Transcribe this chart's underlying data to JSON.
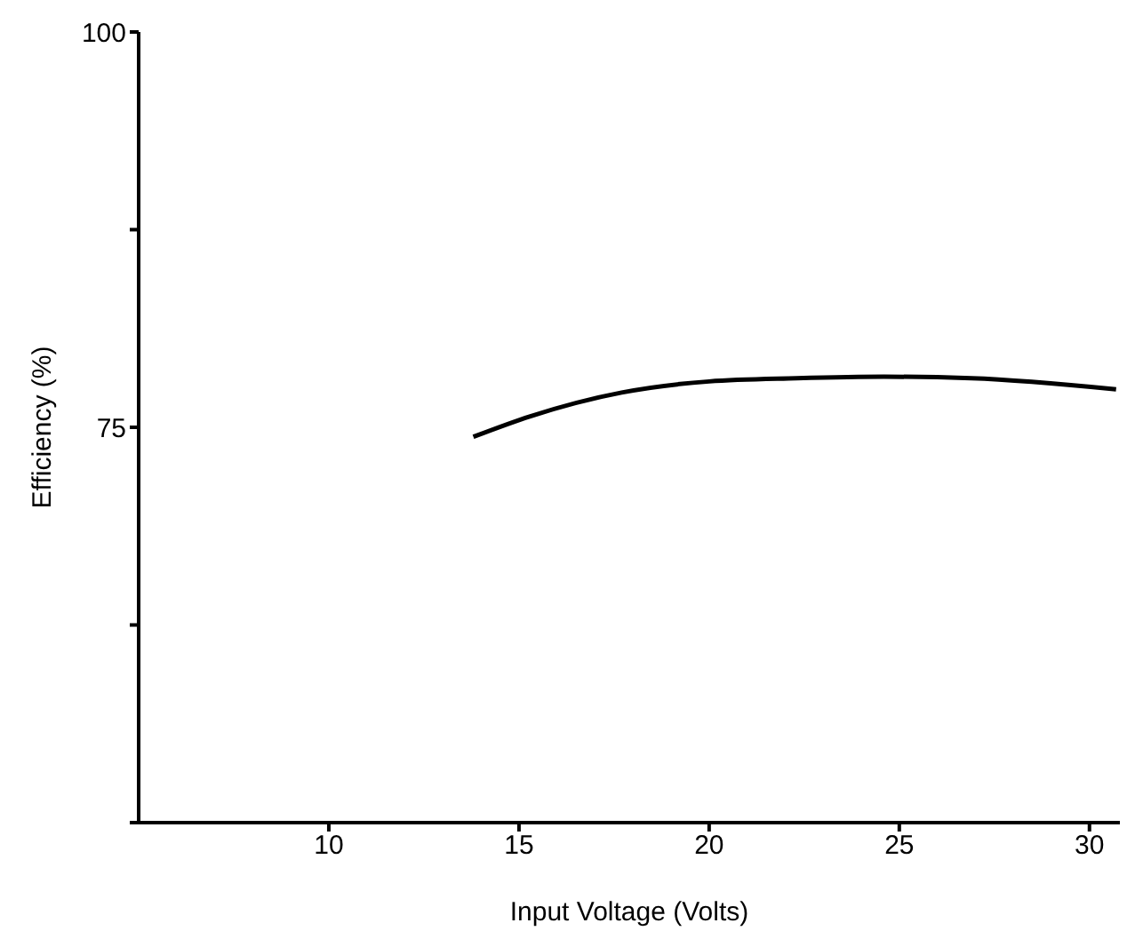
{
  "chart_data": {
    "type": "line",
    "xlabel": "Input Voltage (Volts)",
    "ylabel": "Efficiency (%)",
    "x": [
      13.8,
      15.3,
      17.7,
      20.0,
      22.3,
      24.6,
      26.9,
      30.7
    ],
    "series": [
      {
        "color": "#000000",
        "values": [
          74.4,
          75.7,
          77.2,
          77.9,
          78.1,
          78.2,
          78.1,
          77.4
        ]
      }
    ],
    "xlim": [
      5,
      30.8
    ],
    "xticks": [
      10,
      15,
      20,
      25,
      30
    ],
    "ylim": [
      50,
      100
    ],
    "yticks": [
      {
        "value": 50,
        "label": null
      },
      {
        "value": 62.5,
        "label": null
      },
      75,
      {
        "value": 87.5,
        "label": null
      },
      100
    ],
    "grid": false,
    "legend": false,
    "marker": "none",
    "line_style": "solid"
  }
}
